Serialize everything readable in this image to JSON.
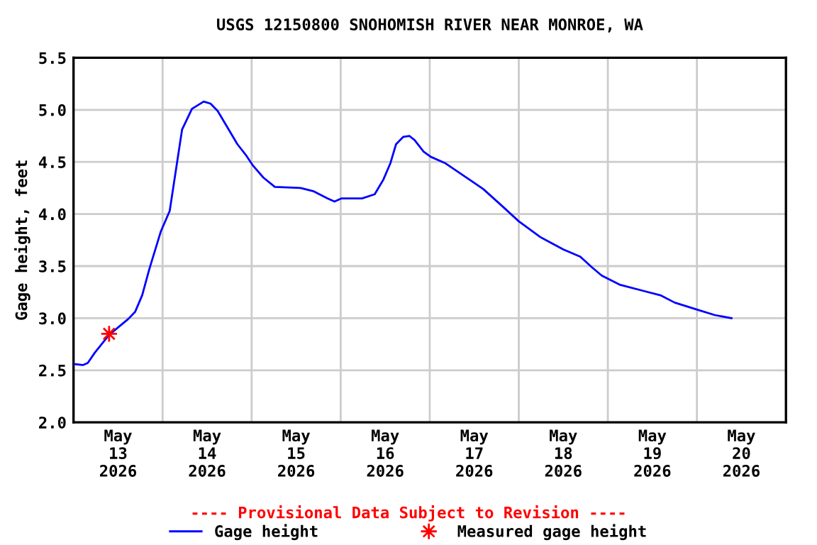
{
  "chart_data": {
    "type": "line",
    "title": "USGS 12150800 SNOHOMISH RIVER NEAR MONROE, WA",
    "ylabel": "Gage height, feet",
    "annotations": [
      "---- Provisional Data Subject to Revision ----"
    ],
    "xlim": [
      "2026-05-13T00:00",
      "2026-05-21T00:00"
    ],
    "xticks": [
      {
        "value": "2026-05-13T12:00",
        "label": "May\n13\n2026"
      },
      {
        "value": "2026-05-14T00:00",
        "label": null
      },
      {
        "value": "2026-05-14T12:00",
        "label": "May\n14\n2026"
      },
      {
        "value": "2026-05-15T00:00",
        "label": null
      },
      {
        "value": "2026-05-15T12:00",
        "label": "May\n15\n2026"
      },
      {
        "value": "2026-05-16T00:00",
        "label": null
      },
      {
        "value": "2026-05-16T12:00",
        "label": "May\n16\n2026"
      },
      {
        "value": "2026-05-17T00:00",
        "label": null
      },
      {
        "value": "2026-05-17T12:00",
        "label": "May\n17\n2026"
      },
      {
        "value": "2026-05-18T00:00",
        "label": null
      },
      {
        "value": "2026-05-18T12:00",
        "label": "May\n18\n2026"
      },
      {
        "value": "2026-05-19T00:00",
        "label": null
      },
      {
        "value": "2026-05-19T12:00",
        "label": "May\n19\n2026"
      },
      {
        "value": "2026-05-20T00:00",
        "label": null
      },
      {
        "value": "2026-05-20T12:00",
        "label": "May\n20\n2026"
      }
    ],
    "ylim": [
      2.0,
      5.5
    ],
    "yticks": [
      {
        "value": 2,
        "label": "2.0"
      },
      {
        "value": 2.5,
        "label": "2.5"
      },
      {
        "value": 3,
        "label": "3.0"
      },
      {
        "value": 3.5,
        "label": "3.5"
      },
      {
        "value": 4,
        "label": "4.0"
      },
      {
        "value": 4.5,
        "label": "4.5"
      },
      {
        "value": 5,
        "label": "5.0"
      },
      {
        "value": 5.5,
        "label": "5.5"
      }
    ],
    "grid": true,
    "legend": "bottom",
    "series": [
      {
        "name": "Gage height",
        "color": "#0000ff",
        "marker": "none",
        "line_style": "solid",
        "x": [
          "2026-05-13T00:00",
          "2026-05-13T02:30",
          "2026-05-13T03:50",
          "2026-05-13T05:45",
          "2026-05-13T09:35",
          "2026-05-13T14:40",
          "2026-05-13T16:35",
          "2026-05-13T18:30",
          "2026-05-13T20:25",
          "2026-05-13T23:30",
          "2026-05-14T01:55",
          "2026-05-14T03:35",
          "2026-05-14T05:15",
          "2026-05-14T07:55",
          "2026-05-14T11:05",
          "2026-05-14T12:55",
          "2026-05-14T14:50",
          "2026-05-14T17:30",
          "2026-05-14T20:10",
          "2026-05-14T22:35",
          "2026-05-15T00:15",
          "2026-05-15T03:10",
          "2026-05-15T06:15",
          "2026-05-15T13:10",
          "2026-05-15T16:35",
          "2026-05-15T20:25",
          "2026-05-15T22:20",
          "2026-05-16T00:15",
          "2026-05-16T05:45",
          "2026-05-16T09:10",
          "2026-05-16T11:30",
          "2026-05-16T13:25",
          "2026-05-16T14:55",
          "2026-05-16T16:50",
          "2026-05-16T18:30",
          "2026-05-16T19:55",
          "2026-05-16T22:20",
          "2026-05-17T00:15",
          "2026-05-17T04:05",
          "2026-05-17T09:05",
          "2026-05-17T14:25",
          "2026-05-17T19:25",
          "2026-05-18T00:00",
          "2026-05-18T05:45",
          "2026-05-18T12:00",
          "2026-05-18T16:35",
          "2026-05-18T19:40",
          "2026-05-18T22:20",
          "2026-05-19T03:20",
          "2026-05-19T09:50",
          "2026-05-19T14:10",
          "2026-05-19T18:00",
          "2026-05-20T00:15",
          "2026-05-20T04:50",
          "2026-05-20T09:20"
        ],
        "values": [
          2.56,
          2.55,
          2.57,
          2.67,
          2.84,
          2.99,
          3.06,
          3.22,
          3.47,
          3.83,
          4.03,
          4.42,
          4.81,
          5.01,
          5.08,
          5.06,
          4.99,
          4.83,
          4.67,
          4.56,
          4.47,
          4.35,
          4.26,
          4.25,
          4.22,
          4.15,
          4.12,
          4.15,
          4.15,
          4.19,
          4.33,
          4.49,
          4.67,
          4.74,
          4.75,
          4.71,
          4.6,
          4.55,
          4.49,
          4.37,
          4.24,
          4.08,
          3.93,
          3.78,
          3.66,
          3.59,
          3.49,
          3.41,
          3.32,
          3.26,
          3.22,
          3.15,
          3.08,
          3.03,
          3.0
        ]
      },
      {
        "name": "Measured gage height",
        "type": "scatter",
        "color": "#ff0000",
        "marker": "cross",
        "x": [
          "2026-05-13T09:35"
        ],
        "values": [
          2.85
        ]
      }
    ]
  }
}
